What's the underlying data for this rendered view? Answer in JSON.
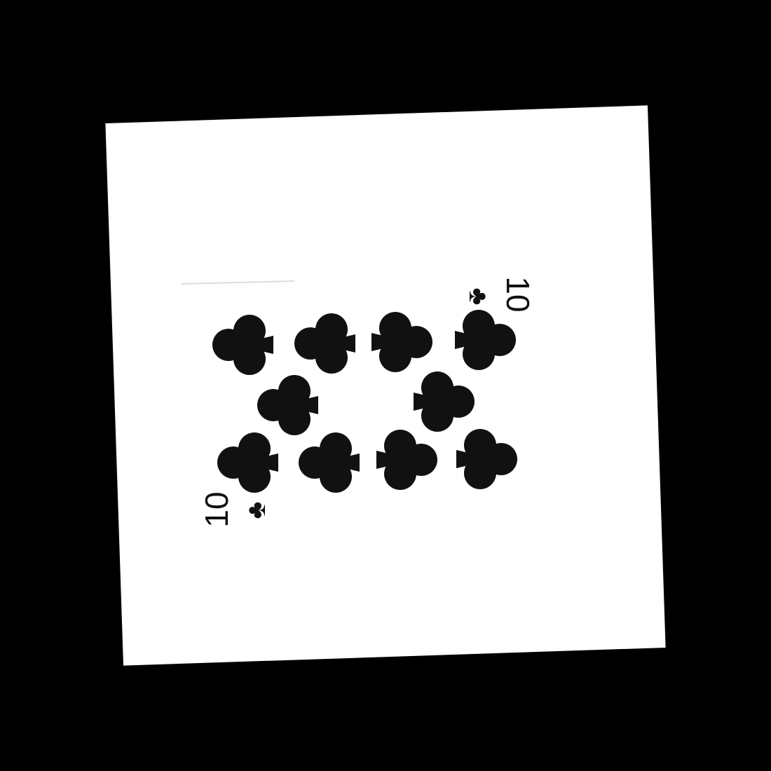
{
  "card": {
    "rank": "10",
    "suit": "clubs",
    "suit_glyph": "♣",
    "color": "#111111",
    "paper_color": "#ffffff",
    "background_color": "#000000"
  },
  "icons": {
    "pip": "club-icon",
    "corner_suit": "club-icon"
  }
}
